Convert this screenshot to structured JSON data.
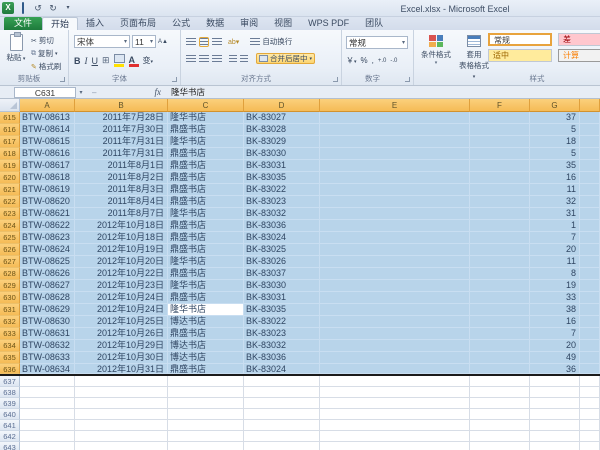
{
  "titlebar": {
    "title": "Excel.xlsx - Microsoft Excel"
  },
  "icons": {
    "excel_logo": "X",
    "undo": "↺",
    "redo": "↻",
    "qat_dropdown": "▾",
    "combo_arrow": "▾",
    "fx": "fx",
    "scissors": "✂",
    "copy": "⧉",
    "brush": "✎",
    "borders": "⊞",
    "bold": "B",
    "italic": "I",
    "underline": "U",
    "font_grow": "A▲",
    "font_shrink": "A▼",
    "currency": "￥",
    "percent": "%",
    "comma": ",",
    "inc_decimal": "+.0",
    "dec_decimal": "-.0",
    "dash": "–"
  },
  "tabs": [
    {
      "label": "文件",
      "kind": "file"
    },
    {
      "label": "开始",
      "kind": "active"
    },
    {
      "label": "插入",
      "kind": ""
    },
    {
      "label": "页面布局",
      "kind": ""
    },
    {
      "label": "公式",
      "kind": ""
    },
    {
      "label": "数据",
      "kind": ""
    },
    {
      "label": "审阅",
      "kind": ""
    },
    {
      "label": "视图",
      "kind": ""
    },
    {
      "label": "WPS PDF",
      "kind": ""
    },
    {
      "label": "团队",
      "kind": ""
    }
  ],
  "ribbon": {
    "clipboard": {
      "label": "剪贴板",
      "paste": "粘贴",
      "cut": "剪切",
      "copy": "复制",
      "format_painter": "格式刷"
    },
    "font": {
      "label": "字体",
      "font_name": "宋体",
      "font_size": "11",
      "phonetic": "变"
    },
    "alignment": {
      "label": "对齐方式",
      "wrap_text": "自动换行",
      "merge_center": "合并后居中"
    },
    "number": {
      "label": "数字",
      "format": "常规"
    },
    "styles": {
      "label": "样式",
      "conditional": "条件格式",
      "format_table_line1": "套用",
      "format_table_line2": "表格格式",
      "cell_styles": [
        {
          "name": "常规",
          "cls": "cs-normal",
          "bg": "#ffffff",
          "fg": "#333333"
        },
        {
          "name": "差",
          "cls": "cs-bad",
          "bg": "#ffc7ce",
          "fg": "#9c0006"
        },
        {
          "name": "适中",
          "cls": "cs-neutral",
          "bg": "#ffeb9c",
          "fg": "#9c6500"
        },
        {
          "name": "计算",
          "cls": "cs-calc",
          "bg": "#f2f2f2",
          "fg": "#fa7d00"
        }
      ]
    }
  },
  "formula_bar": {
    "name_box": "C631",
    "value": "隆华书店"
  },
  "colors": {
    "selection_fill": "#b8d4ea",
    "selected_header": "#f5bb56",
    "active_cell": "#ffffff",
    "file_tab_green": "#1e7a3c"
  },
  "sheet": {
    "columns": [
      "A",
      "B",
      "C",
      "D",
      "E",
      "F",
      "G"
    ],
    "active_cell": {
      "row": 631,
      "col": 2
    },
    "rows": [
      {
        "n": 615,
        "sel": true,
        "cells": [
          "BTW-08613",
          "2011年7月28日",
          "隆华书店",
          "BK-83027",
          "",
          "",
          "37"
        ]
      },
      {
        "n": 616,
        "sel": true,
        "cells": [
          "BTW-08614",
          "2011年7月30日",
          "鼎盛书店",
          "BK-83028",
          "",
          "",
          "5"
        ]
      },
      {
        "n": 617,
        "sel": true,
        "cells": [
          "BTW-08615",
          "2011年7月31日",
          "隆华书店",
          "BK-83029",
          "",
          "",
          "18"
        ]
      },
      {
        "n": 618,
        "sel": true,
        "cells": [
          "BTW-08616",
          "2011年7月31日",
          "鼎盛书店",
          "BK-83030",
          "",
          "",
          "5"
        ]
      },
      {
        "n": 619,
        "sel": true,
        "cells": [
          "BTW-08617",
          "2011年8月1日",
          "鼎盛书店",
          "BK-83031",
          "",
          "",
          "35"
        ]
      },
      {
        "n": 620,
        "sel": true,
        "cells": [
          "BTW-08618",
          "2011年8月2日",
          "鼎盛书店",
          "BK-83035",
          "",
          "",
          "16"
        ]
      },
      {
        "n": 621,
        "sel": true,
        "cells": [
          "BTW-08619",
          "2011年8月3日",
          "鼎盛书店",
          "BK-83022",
          "",
          "",
          "11"
        ]
      },
      {
        "n": 622,
        "sel": true,
        "cells": [
          "BTW-08620",
          "2011年8月4日",
          "鼎盛书店",
          "BK-83023",
          "",
          "",
          "32"
        ]
      },
      {
        "n": 623,
        "sel": true,
        "cells": [
          "BTW-08621",
          "2011年8月7日",
          "隆华书店",
          "BK-83032",
          "",
          "",
          "31"
        ]
      },
      {
        "n": 624,
        "sel": true,
        "cells": [
          "BTW-08622",
          "2012年10月18日",
          "鼎盛书店",
          "BK-83036",
          "",
          "",
          "1"
        ]
      },
      {
        "n": 625,
        "sel": true,
        "cells": [
          "BTW-08623",
          "2012年10月18日",
          "鼎盛书店",
          "BK-83024",
          "",
          "",
          "7"
        ]
      },
      {
        "n": 626,
        "sel": true,
        "cells": [
          "BTW-08624",
          "2012年10月19日",
          "鼎盛书店",
          "BK-83025",
          "",
          "",
          "20"
        ]
      },
      {
        "n": 627,
        "sel": true,
        "cells": [
          "BTW-08625",
          "2012年10月20日",
          "隆华书店",
          "BK-83026",
          "",
          "",
          "11"
        ]
      },
      {
        "n": 628,
        "sel": true,
        "cells": [
          "BTW-08626",
          "2012年10月22日",
          "鼎盛书店",
          "BK-83037",
          "",
          "",
          "8"
        ]
      },
      {
        "n": 629,
        "sel": true,
        "cells": [
          "BTW-08627",
          "2012年10月23日",
          "隆华书店",
          "BK-83030",
          "",
          "",
          "19"
        ]
      },
      {
        "n": 630,
        "sel": true,
        "cells": [
          "BTW-08628",
          "2012年10月24日",
          "鼎盛书店",
          "BK-83031",
          "",
          "",
          "33"
        ]
      },
      {
        "n": 631,
        "sel": true,
        "cells": [
          "BTW-08629",
          "2012年10月24日",
          "隆华书店",
          "BK-83035",
          "",
          "",
          "38"
        ]
      },
      {
        "n": 632,
        "sel": true,
        "cells": [
          "BTW-08630",
          "2012年10月25日",
          "博达书店",
          "BK-83022",
          "",
          "",
          "16"
        ]
      },
      {
        "n": 633,
        "sel": true,
        "cells": [
          "BTW-08631",
          "2012年10月26日",
          "鼎盛书店",
          "BK-83023",
          "",
          "",
          "7"
        ]
      },
      {
        "n": 634,
        "sel": true,
        "cells": [
          "BTW-08632",
          "2012年10月29日",
          "博达书店",
          "BK-83032",
          "",
          "",
          "20"
        ]
      },
      {
        "n": 635,
        "sel": true,
        "cells": [
          "BTW-08633",
          "2012年10月30日",
          "博达书店",
          "BK-83036",
          "",
          "",
          "49"
        ]
      },
      {
        "n": 636,
        "sel": true,
        "cells": [
          "BTW-08634",
          "2012年10月31日",
          "鼎盛书店",
          "BK-83024",
          "",
          "",
          "36"
        ]
      },
      {
        "n": 637,
        "sel": false,
        "cells": [
          "",
          "",
          "",
          "",
          "",
          "",
          ""
        ]
      },
      {
        "n": 638,
        "sel": false,
        "cells": [
          "",
          "",
          "",
          "",
          "",
          "",
          ""
        ]
      },
      {
        "n": 639,
        "sel": false,
        "cells": [
          "",
          "",
          "",
          "",
          "",
          "",
          ""
        ]
      },
      {
        "n": 640,
        "sel": false,
        "cells": [
          "",
          "",
          "",
          "",
          "",
          "",
          ""
        ]
      },
      {
        "n": 641,
        "sel": false,
        "cells": [
          "",
          "",
          "",
          "",
          "",
          "",
          ""
        ]
      },
      {
        "n": 642,
        "sel": false,
        "cells": [
          "",
          "",
          "",
          "",
          "",
          "",
          ""
        ]
      },
      {
        "n": 643,
        "sel": false,
        "cells": [
          "",
          "",
          "",
          "",
          "",
          "",
          ""
        ]
      }
    ]
  }
}
